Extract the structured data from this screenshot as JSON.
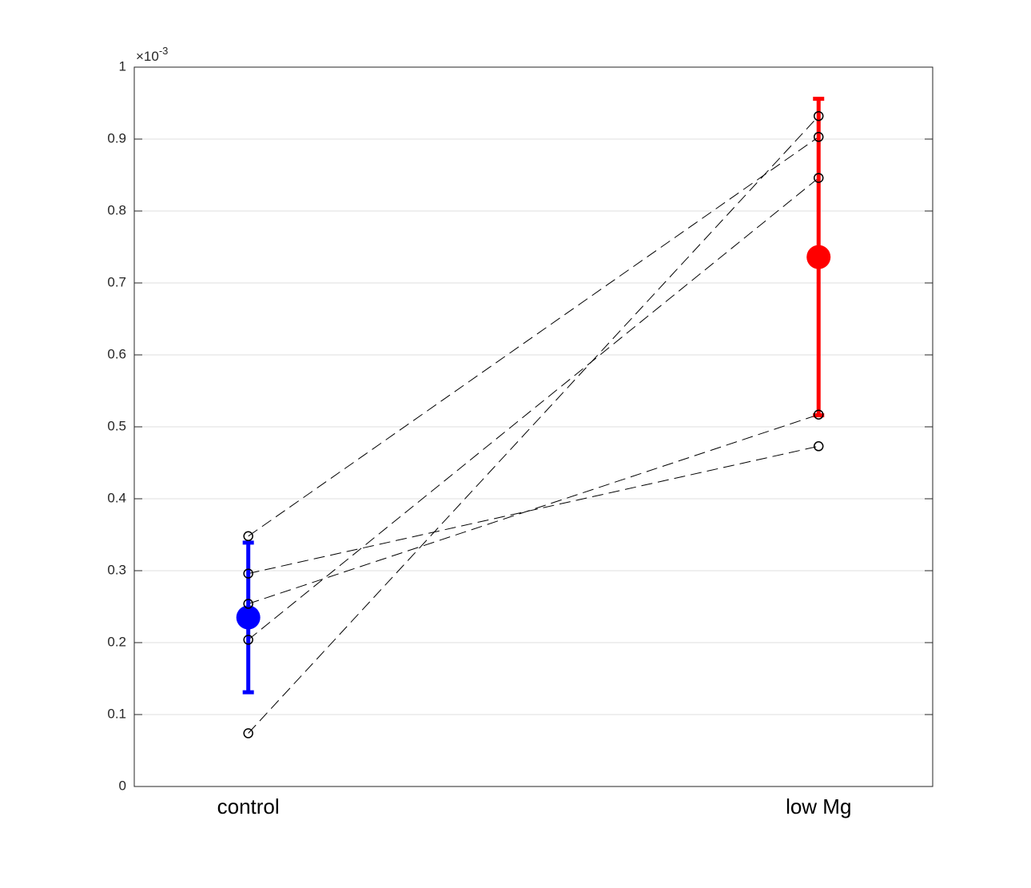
{
  "chart_data": {
    "type": "errorbar",
    "categories": [
      "control",
      "low Mg"
    ],
    "axis_multiplier": {
      "base": "×10",
      "exponent": "-3"
    },
    "ylim": [
      0,
      1
    ],
    "yticks": [
      0,
      0.1,
      0.2,
      0.3,
      0.4,
      0.5,
      0.6,
      0.7,
      0.8,
      0.9,
      1
    ],
    "grid": true,
    "means": [
      0.235,
      0.736
    ],
    "errors": [
      0.104,
      0.22
    ],
    "mean_colors": [
      "#0000ff",
      "#ff0000"
    ],
    "pair_color": "#000000",
    "pairs": [
      [
        0.348,
        0.903
      ],
      [
        0.074,
        0.932
      ],
      [
        0.204,
        0.846
      ],
      [
        0.254,
        0.517
      ],
      [
        0.296,
        0.473
      ]
    ]
  }
}
